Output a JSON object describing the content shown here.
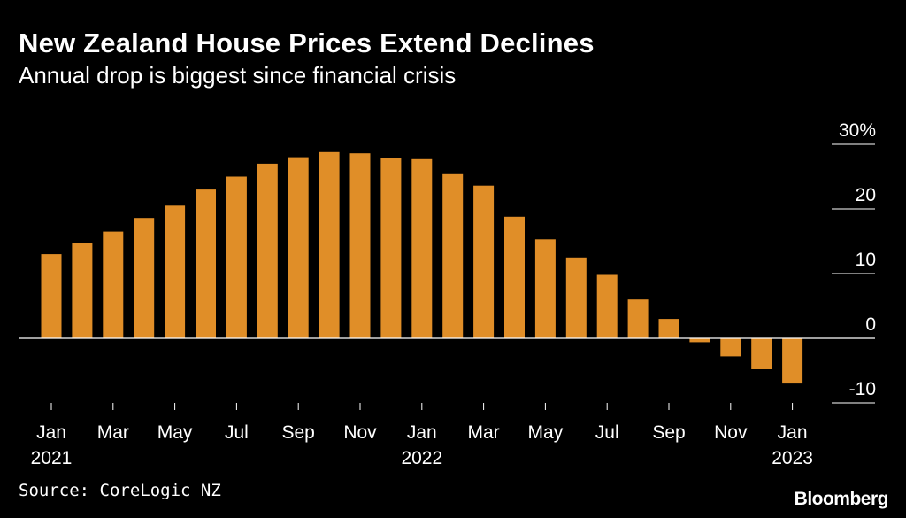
{
  "title": "New Zealand House Prices Extend Declines",
  "subtitle": "Annual drop is biggest since financial crisis",
  "source": "Source: CoreLogic NZ",
  "brand": "Bloomberg",
  "colors": {
    "bar": "#e08e28",
    "background": "#000000",
    "text": "#ffffff",
    "axis": "#ffffff"
  },
  "chart_data": {
    "type": "bar",
    "title": "New Zealand House Prices Extend Declines",
    "subtitle": "Annual drop is biggest since financial crisis",
    "xlabel": "",
    "ylabel": "",
    "unit": "%",
    "ylim": [
      -10,
      30
    ],
    "yticks": [
      {
        "value": 30,
        "label": "30%"
      },
      {
        "value": 20,
        "label": "20"
      },
      {
        "value": 10,
        "label": "10"
      },
      {
        "value": 0,
        "label": "0"
      },
      {
        "value": -10,
        "label": "-10"
      }
    ],
    "grid": false,
    "categories": [
      "Jan 2021",
      "Feb 2021",
      "Mar 2021",
      "Apr 2021",
      "May 2021",
      "Jun 2021",
      "Jul 2021",
      "Aug 2021",
      "Sep 2021",
      "Oct 2021",
      "Nov 2021",
      "Dec 2021",
      "Jan 2022",
      "Feb 2022",
      "Mar 2022",
      "Apr 2022",
      "May 2022",
      "Jun 2022",
      "Jul 2022",
      "Aug 2022",
      "Sep 2022",
      "Oct 2022",
      "Nov 2022",
      "Dec 2022",
      "Jan 2023"
    ],
    "values": [
      13.0,
      14.8,
      16.5,
      18.6,
      20.5,
      23.0,
      25.0,
      27.0,
      28.0,
      28.8,
      28.6,
      27.9,
      27.7,
      25.5,
      23.6,
      18.8,
      15.3,
      12.5,
      9.8,
      6.0,
      3.0,
      -0.6,
      -2.8,
      -4.8,
      -7.0
    ],
    "xticks": [
      {
        "index": 0,
        "label": "Jan",
        "year": "2021"
      },
      {
        "index": 2,
        "label": "Mar",
        "year": ""
      },
      {
        "index": 4,
        "label": "May",
        "year": ""
      },
      {
        "index": 6,
        "label": "Jul",
        "year": ""
      },
      {
        "index": 8,
        "label": "Sep",
        "year": ""
      },
      {
        "index": 10,
        "label": "Nov",
        "year": ""
      },
      {
        "index": 12,
        "label": "Jan",
        "year": "2022"
      },
      {
        "index": 14,
        "label": "Mar",
        "year": ""
      },
      {
        "index": 16,
        "label": "May",
        "year": ""
      },
      {
        "index": 18,
        "label": "Jul",
        "year": ""
      },
      {
        "index": 20,
        "label": "Sep",
        "year": ""
      },
      {
        "index": 22,
        "label": "Nov",
        "year": ""
      },
      {
        "index": 24,
        "label": "Jan",
        "year": "2023"
      }
    ]
  }
}
